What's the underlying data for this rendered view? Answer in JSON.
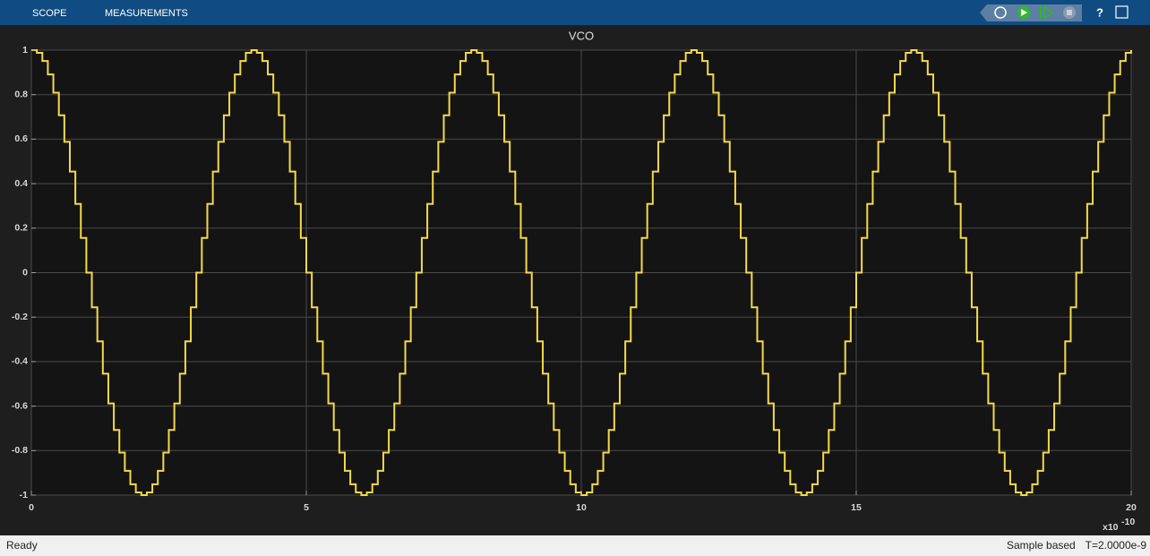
{
  "toolbar": {
    "tabs": [
      "SCOPE",
      "MEASUREMENTS"
    ]
  },
  "chart_data": {
    "type": "line",
    "title": "VCO",
    "step": "post",
    "grid": true,
    "x": [
      0,
      0.1,
      0.2,
      0.3,
      0.4,
      0.5,
      0.6,
      0.7,
      0.8,
      0.9,
      1,
      1.1,
      1.2,
      1.3,
      1.4,
      1.5,
      1.6,
      1.7,
      1.8,
      1.9,
      2,
      2.1,
      2.2,
      2.3,
      2.4,
      2.5,
      2.6,
      2.7,
      2.8,
      2.9,
      3,
      3.1,
      3.2,
      3.3,
      3.4,
      3.5,
      3.6,
      3.7,
      3.8,
      3.9,
      4,
      4.1,
      4.2,
      4.3,
      4.4,
      4.5,
      4.6,
      4.7,
      4.8,
      4.9,
      5,
      5.1,
      5.2,
      5.3,
      5.4,
      5.5,
      5.6,
      5.7,
      5.8,
      5.9,
      6,
      6.1,
      6.2,
      6.3,
      6.4,
      6.5,
      6.6,
      6.7,
      6.8,
      6.9,
      7,
      7.1,
      7.2,
      7.3,
      7.4,
      7.5,
      7.6,
      7.7,
      7.8,
      7.9,
      8,
      8.1,
      8.2,
      8.3,
      8.4,
      8.5,
      8.6,
      8.7,
      8.8,
      8.9,
      9,
      9.1,
      9.2,
      9.3,
      9.4,
      9.5,
      9.6,
      9.7,
      9.8,
      9.9,
      10,
      10.1,
      10.2,
      10.3,
      10.4,
      10.5,
      10.6,
      10.7,
      10.8,
      10.9,
      11,
      11.1,
      11.2,
      11.3,
      11.4,
      11.5,
      11.6,
      11.7,
      11.8,
      11.9,
      12,
      12.1,
      12.2,
      12.3,
      12.4,
      12.5,
      12.6,
      12.7,
      12.8,
      12.9,
      13,
      13.1,
      13.2,
      13.3,
      13.4,
      13.5,
      13.6,
      13.7,
      13.8,
      13.9,
      14,
      14.1,
      14.2,
      14.3,
      14.4,
      14.5,
      14.6,
      14.7,
      14.8,
      14.9,
      15,
      15.1,
      15.2,
      15.3,
      15.4,
      15.5,
      15.6,
      15.7,
      15.8,
      15.9,
      16,
      16.1,
      16.2,
      16.3,
      16.4,
      16.5,
      16.6,
      16.7,
      16.8,
      16.9,
      17,
      17.1,
      17.2,
      17.3,
      17.4,
      17.5,
      17.6,
      17.7,
      17.8,
      17.9,
      18,
      18.1,
      18.2,
      18.3,
      18.4,
      18.5,
      18.6,
      18.7,
      18.8,
      18.9,
      19,
      19.1,
      19.2,
      19.3,
      19.4,
      19.5,
      19.6,
      19.7,
      19.8,
      19.9,
      20
    ],
    "series": [
      {
        "color": "#f5d94a",
        "values": [
          1,
          0.988,
          0.951,
          0.891,
          0.809,
          0.707,
          0.588,
          0.454,
          0.309,
          0.156,
          0,
          -0.156,
          -0.309,
          -0.454,
          -0.588,
          -0.707,
          -0.809,
          -0.891,
          -0.951,
          -0.988,
          -1,
          -0.988,
          -0.951,
          -0.891,
          -0.809,
          -0.707,
          -0.588,
          -0.454,
          -0.309,
          -0.156,
          0,
          0.156,
          0.309,
          0.454,
          0.588,
          0.707,
          0.809,
          0.891,
          0.951,
          0.988,
          1,
          0.988,
          0.951,
          0.891,
          0.809,
          0.707,
          0.588,
          0.454,
          0.309,
          0.156,
          0,
          -0.156,
          -0.309,
          -0.454,
          -0.588,
          -0.707,
          -0.809,
          -0.891,
          -0.951,
          -0.988,
          -1,
          -0.988,
          -0.951,
          -0.891,
          -0.809,
          -0.707,
          -0.588,
          -0.454,
          -0.309,
          -0.156,
          0,
          0.156,
          0.309,
          0.454,
          0.588,
          0.707,
          0.809,
          0.891,
          0.951,
          0.988,
          1,
          0.988,
          0.951,
          0.891,
          0.809,
          0.707,
          0.588,
          0.454,
          0.309,
          0.156,
          0,
          -0.156,
          -0.309,
          -0.454,
          -0.588,
          -0.707,
          -0.809,
          -0.891,
          -0.951,
          -0.988,
          -1,
          -0.988,
          -0.951,
          -0.891,
          -0.809,
          -0.707,
          -0.588,
          -0.454,
          -0.309,
          -0.156,
          0,
          0.156,
          0.309,
          0.454,
          0.588,
          0.707,
          0.809,
          0.891,
          0.951,
          0.988,
          1,
          0.988,
          0.951,
          0.891,
          0.809,
          0.707,
          0.588,
          0.454,
          0.309,
          0.156,
          0,
          -0.156,
          -0.309,
          -0.454,
          -0.588,
          -0.707,
          -0.809,
          -0.891,
          -0.951,
          -0.988,
          -1,
          -0.988,
          -0.951,
          -0.891,
          -0.809,
          -0.707,
          -0.588,
          -0.454,
          -0.309,
          -0.156,
          0,
          0.156,
          0.309,
          0.454,
          0.588,
          0.707,
          0.809,
          0.891,
          0.951,
          0.988,
          1,
          0.988,
          0.951,
          0.891,
          0.809,
          0.707,
          0.588,
          0.454,
          0.309,
          0.156,
          0,
          -0.156,
          -0.309,
          -0.454,
          -0.588,
          -0.707,
          -0.809,
          -0.891,
          -0.951,
          -0.988,
          -1,
          -0.988,
          -0.951,
          -0.891,
          -0.809,
          -0.707,
          -0.588,
          -0.454,
          -0.309,
          -0.156,
          0,
          0.156,
          0.309,
          0.454,
          0.588,
          0.707,
          0.809,
          0.891,
          0.951,
          0.988,
          1
        ]
      }
    ],
    "xlim": [
      0,
      20
    ],
    "xticks": [
      0,
      5,
      10,
      15,
      20
    ],
    "ylim": [
      -1,
      1
    ],
    "yticks": [
      -1,
      -0.8,
      -0.6,
      -0.4,
      -0.2,
      0,
      0.2,
      0.4,
      0.6,
      0.8,
      1
    ],
    "x_exponent_base": "x10",
    "x_exponent": "-10"
  },
  "status": {
    "left": "Ready",
    "mode": "Sample based",
    "time": "T=2.0000e-9"
  }
}
